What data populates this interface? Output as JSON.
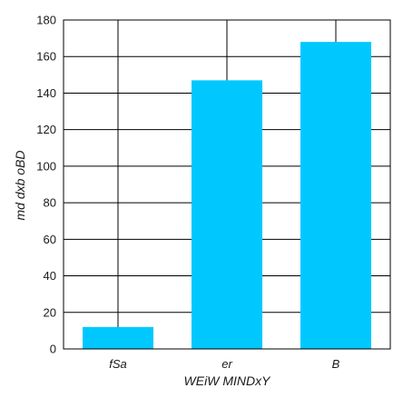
{
  "chart_data": {
    "type": "bar",
    "categories": [
      "fSa",
      "er",
      "B"
    ],
    "values": [
      12,
      147,
      168
    ],
    "xlabel": "WEiW MINDxY",
    "ylabel": "md dxb  oBD",
    "ylim": [
      0,
      180
    ],
    "yticks": [
      0,
      20,
      40,
      60,
      80,
      100,
      120,
      140,
      160,
      180
    ],
    "grid": true,
    "bar_color": "#00c8ff",
    "grid_color": "#000000"
  }
}
